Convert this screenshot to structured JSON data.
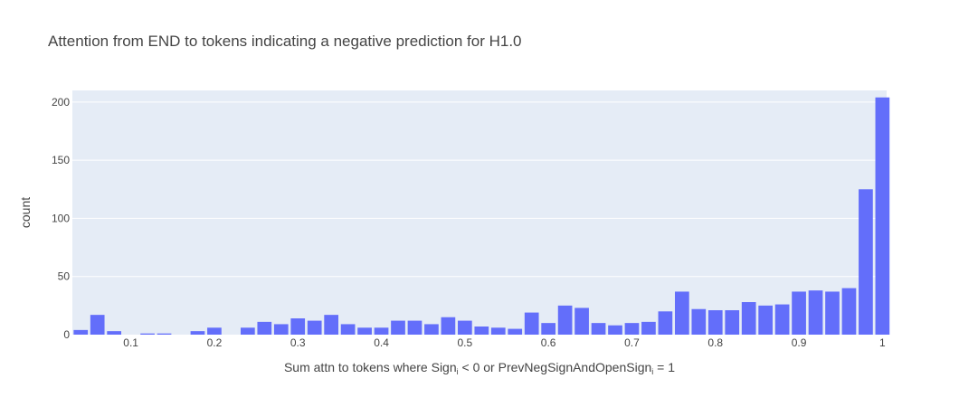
{
  "chart_data": {
    "type": "bar",
    "title": "Attention from END to tokens indicating a negative prediction for H1.0",
    "xlabel_parts": [
      "Sum attn to tokens where Sign",
      "i",
      " < 0 or PrevNegSignAndOpenSign",
      "i",
      " = 1"
    ],
    "ylabel": "count",
    "xlim": [
      0.03,
      1.005
    ],
    "ylim": [
      0,
      210
    ],
    "x_ticks": [
      0.1,
      0.2,
      0.3,
      0.4,
      0.5,
      0.6,
      0.7,
      0.8,
      0.9,
      1
    ],
    "x_tick_labels": [
      "0.1",
      "0.2",
      "0.3",
      "0.4",
      "0.5",
      "0.6",
      "0.7",
      "0.8",
      "0.9",
      "1"
    ],
    "y_ticks": [
      0,
      50,
      100,
      150,
      200
    ],
    "y_tick_labels": [
      "0",
      "50",
      "100",
      "150",
      "200"
    ],
    "bar_width": 0.02,
    "x": [
      0.04,
      0.06,
      0.08,
      0.1,
      0.12,
      0.14,
      0.16,
      0.18,
      0.2,
      0.22,
      0.24,
      0.26,
      0.28,
      0.3,
      0.32,
      0.34,
      0.36,
      0.38,
      0.4,
      0.42,
      0.44,
      0.46,
      0.48,
      0.5,
      0.52,
      0.54,
      0.56,
      0.58,
      0.6,
      0.62,
      0.64,
      0.66,
      0.68,
      0.7,
      0.72,
      0.74,
      0.76,
      0.78,
      0.8,
      0.82,
      0.84,
      0.86,
      0.88,
      0.9,
      0.92,
      0.94,
      0.96,
      0.98,
      1.0
    ],
    "values": [
      4,
      17,
      3,
      0,
      1,
      1,
      0,
      3,
      6,
      0,
      6,
      11,
      9,
      14,
      12,
      17,
      9,
      6,
      6,
      12,
      12,
      9,
      15,
      12,
      7,
      6,
      5,
      19,
      10,
      25,
      23,
      10,
      8,
      10,
      11,
      20,
      37,
      22,
      21,
      21,
      28,
      25,
      26,
      37,
      38,
      37,
      40,
      125,
      204
    ],
    "bar_color": "#636efa",
    "grid": true,
    "plot_bg": "#e5ecf6",
    "grid_color": "#ffffff"
  }
}
